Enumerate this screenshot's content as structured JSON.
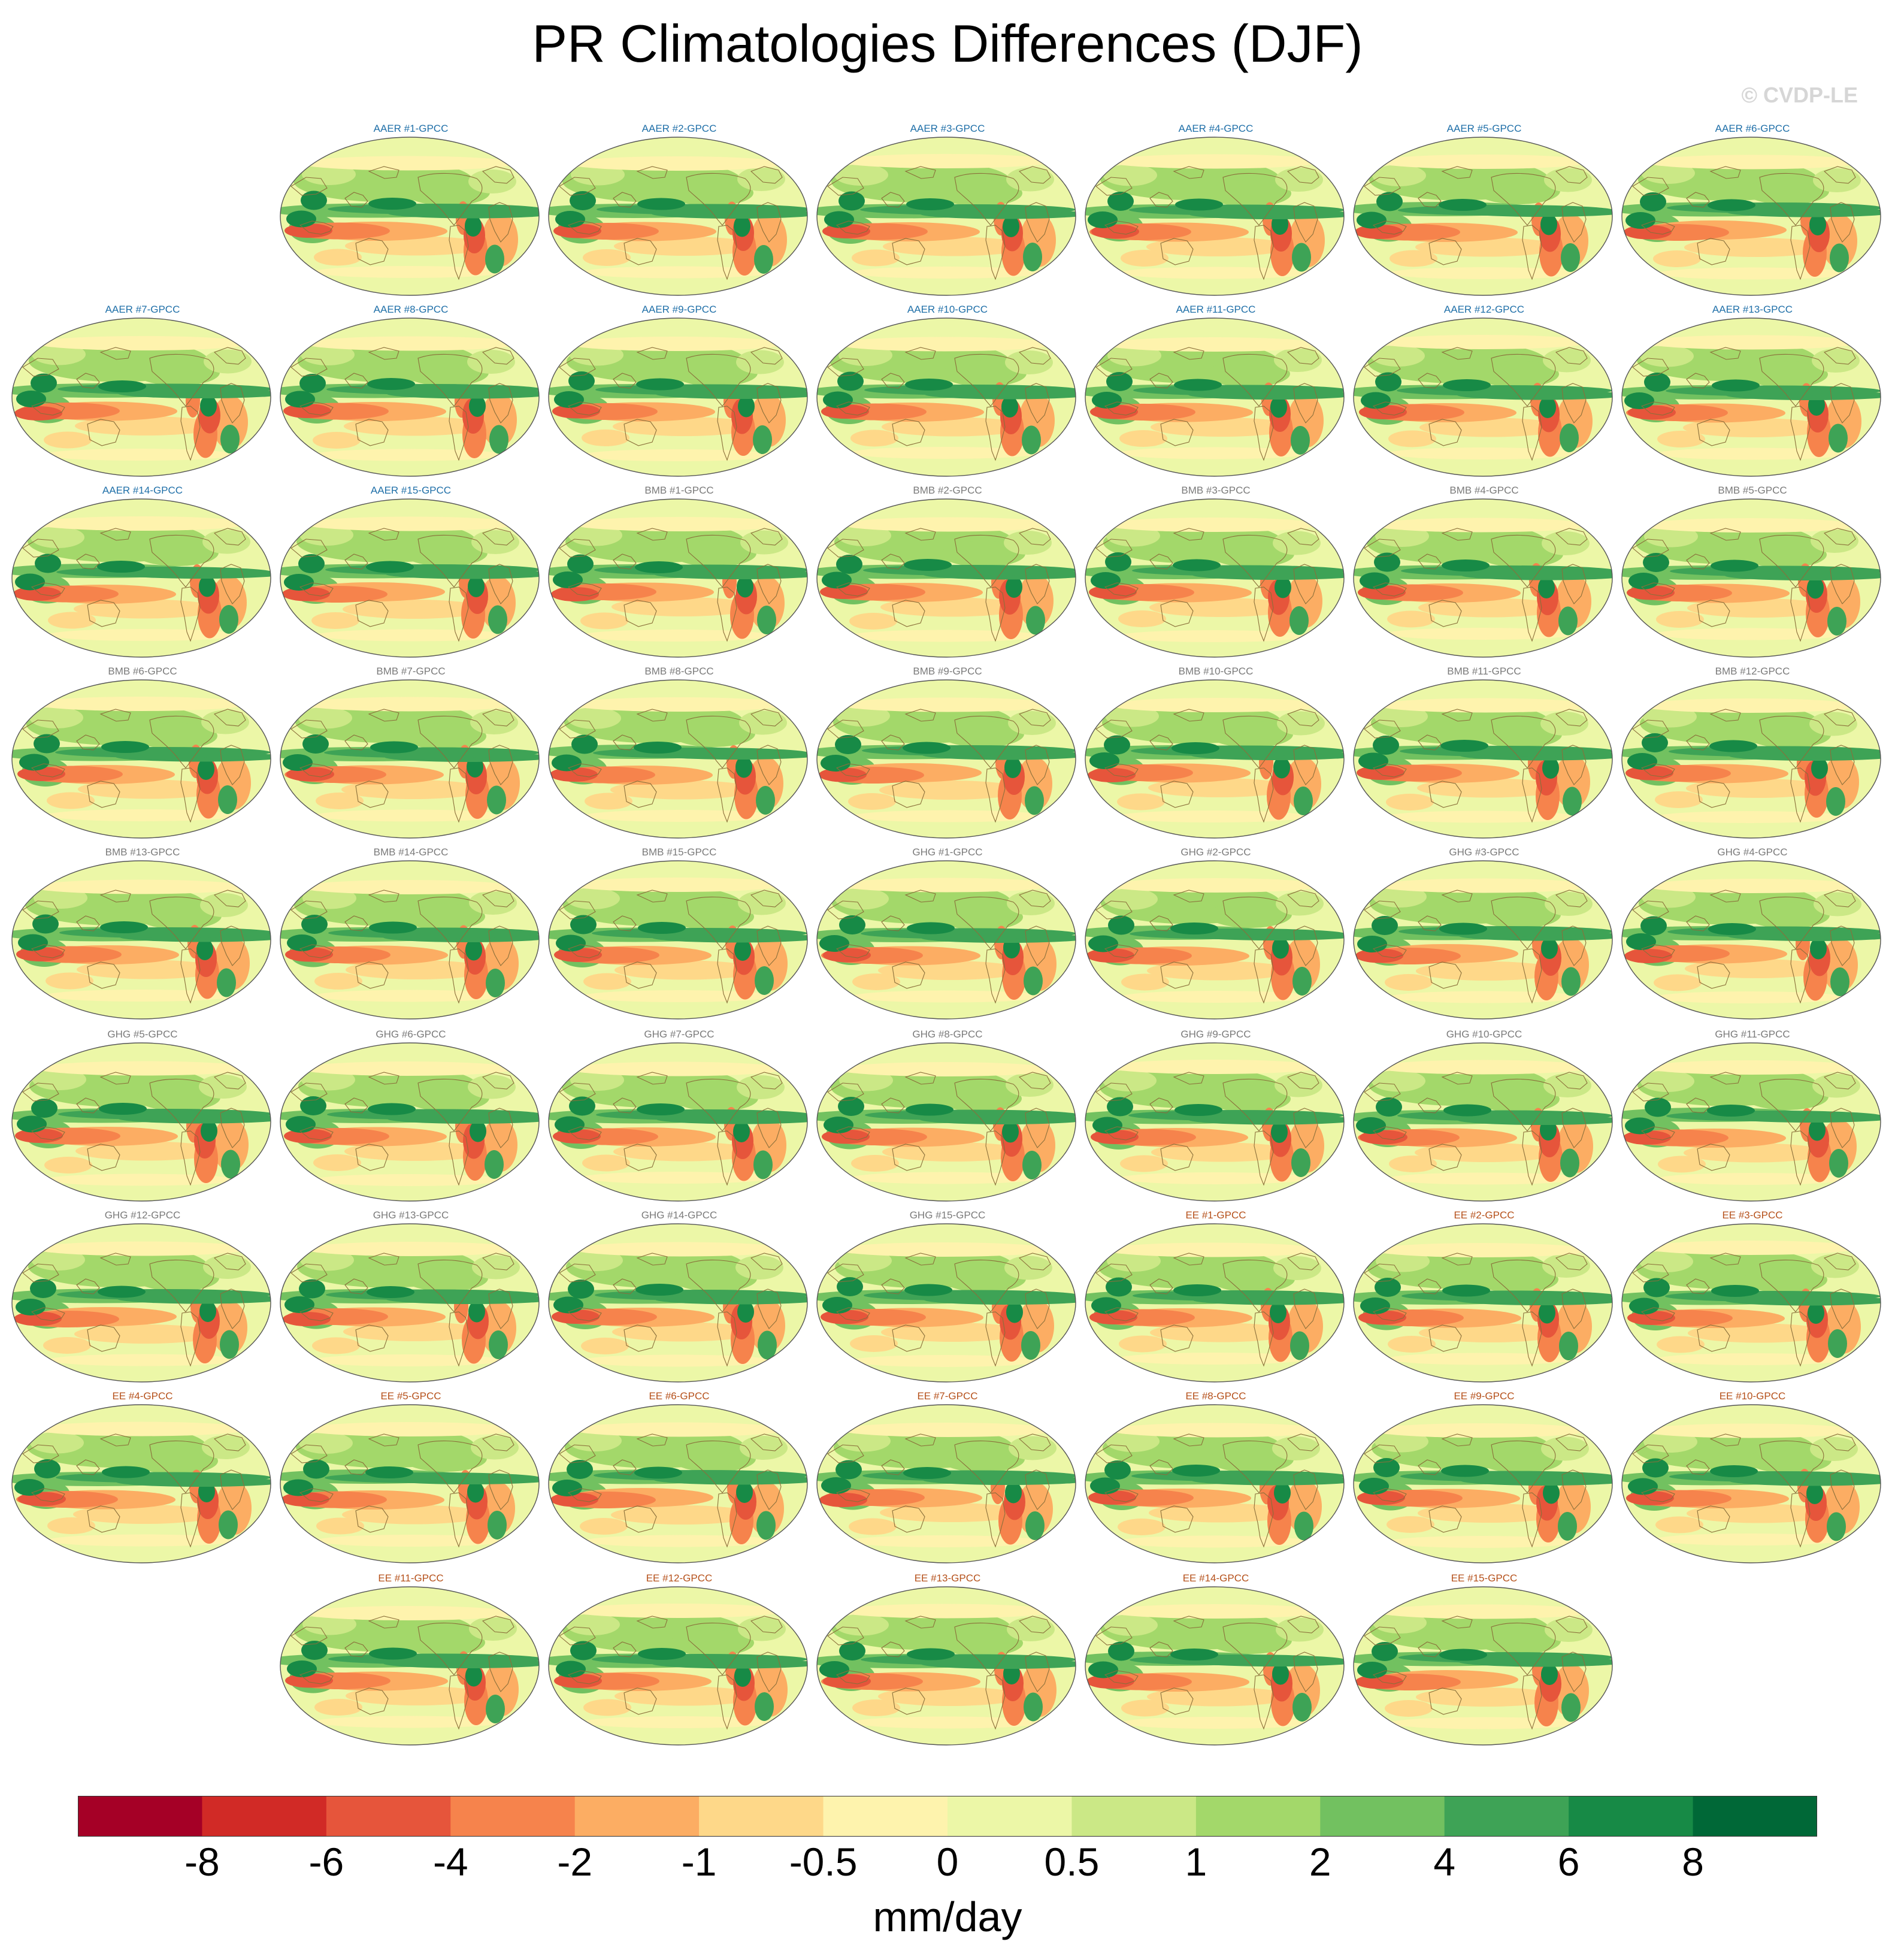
{
  "title": "PR Climatologies Differences (DJF)",
  "watermark": "© CVDP-LE",
  "colors": {
    "AAER": "#1f6fa8",
    "BMB": "#7a7a7a",
    "GHG": "#7a7a7a",
    "EE": "#b5501a"
  },
  "chart_data": {
    "type": "heatmap",
    "title": "PR Climatologies Differences (DJF)",
    "map_projection": "Robinson, Pacific-centered",
    "panels": [
      {
        "label": "AAER #1-GPCC",
        "group": "AAER"
      },
      {
        "label": "AAER #2-GPCC",
        "group": "AAER"
      },
      {
        "label": "AAER #3-GPCC",
        "group": "AAER"
      },
      {
        "label": "AAER #4-GPCC",
        "group": "AAER"
      },
      {
        "label": "AAER #5-GPCC",
        "group": "AAER"
      },
      {
        "label": "AAER #6-GPCC",
        "group": "AAER"
      },
      {
        "label": "AAER #7-GPCC",
        "group": "AAER"
      },
      {
        "label": "AAER #8-GPCC",
        "group": "AAER"
      },
      {
        "label": "AAER #9-GPCC",
        "group": "AAER"
      },
      {
        "label": "AAER #10-GPCC",
        "group": "AAER"
      },
      {
        "label": "AAER #11-GPCC",
        "group": "AAER"
      },
      {
        "label": "AAER #12-GPCC",
        "group": "AAER"
      },
      {
        "label": "AAER #13-GPCC",
        "group": "AAER"
      },
      {
        "label": "AAER #14-GPCC",
        "group": "AAER"
      },
      {
        "label": "AAER #15-GPCC",
        "group": "AAER"
      },
      {
        "label": "BMB #1-GPCC",
        "group": "BMB"
      },
      {
        "label": "BMB #2-GPCC",
        "group": "BMB"
      },
      {
        "label": "BMB #3-GPCC",
        "group": "BMB"
      },
      {
        "label": "BMB #4-GPCC",
        "group": "BMB"
      },
      {
        "label": "BMB #5-GPCC",
        "group": "BMB"
      },
      {
        "label": "BMB #6-GPCC",
        "group": "BMB"
      },
      {
        "label": "BMB #7-GPCC",
        "group": "BMB"
      },
      {
        "label": "BMB #8-GPCC",
        "group": "BMB"
      },
      {
        "label": "BMB #9-GPCC",
        "group": "BMB"
      },
      {
        "label": "BMB #10-GPCC",
        "group": "BMB"
      },
      {
        "label": "BMB #11-GPCC",
        "group": "BMB"
      },
      {
        "label": "BMB #12-GPCC",
        "group": "BMB"
      },
      {
        "label": "BMB #13-GPCC",
        "group": "BMB"
      },
      {
        "label": "BMB #14-GPCC",
        "group": "BMB"
      },
      {
        "label": "BMB #15-GPCC",
        "group": "BMB"
      },
      {
        "label": "GHG #1-GPCC",
        "group": "GHG"
      },
      {
        "label": "GHG #2-GPCC",
        "group": "GHG"
      },
      {
        "label": "GHG #3-GPCC",
        "group": "GHG"
      },
      {
        "label": "GHG #4-GPCC",
        "group": "GHG"
      },
      {
        "label": "GHG #5-GPCC",
        "group": "GHG"
      },
      {
        "label": "GHG #6-GPCC",
        "group": "GHG"
      },
      {
        "label": "GHG #7-GPCC",
        "group": "GHG"
      },
      {
        "label": "GHG #8-GPCC",
        "group": "GHG"
      },
      {
        "label": "GHG #9-GPCC",
        "group": "GHG"
      },
      {
        "label": "GHG #10-GPCC",
        "group": "GHG"
      },
      {
        "label": "GHG #11-GPCC",
        "group": "GHG"
      },
      {
        "label": "GHG #12-GPCC",
        "group": "GHG"
      },
      {
        "label": "GHG #13-GPCC",
        "group": "GHG"
      },
      {
        "label": "GHG #14-GPCC",
        "group": "GHG"
      },
      {
        "label": "GHG #15-GPCC",
        "group": "GHG"
      },
      {
        "label": "EE #1-GPCC",
        "group": "EE"
      },
      {
        "label": "EE #2-GPCC",
        "group": "EE"
      },
      {
        "label": "EE #3-GPCC",
        "group": "EE"
      },
      {
        "label": "EE #4-GPCC",
        "group": "EE"
      },
      {
        "label": "EE #5-GPCC",
        "group": "EE"
      },
      {
        "label": "EE #6-GPCC",
        "group": "EE"
      },
      {
        "label": "EE #7-GPCC",
        "group": "EE"
      },
      {
        "label": "EE #8-GPCC",
        "group": "EE"
      },
      {
        "label": "EE #9-GPCC",
        "group": "EE"
      },
      {
        "label": "EE #10-GPCC",
        "group": "EE"
      },
      {
        "label": "EE #11-GPCC",
        "group": "EE"
      },
      {
        "label": "EE #12-GPCC",
        "group": "EE"
      },
      {
        "label": "EE #13-GPCC",
        "group": "EE"
      },
      {
        "label": "EE #14-GPCC",
        "group": "EE"
      },
      {
        "label": "EE #15-GPCC",
        "group": "EE"
      }
    ],
    "colorbar": {
      "units": "mm/day",
      "ticks": [
        "-8",
        "-6",
        "-4",
        "-2",
        "-1",
        "-0.5",
        "0",
        "0.5",
        "1",
        "2",
        "4",
        "6",
        "8"
      ],
      "colors": [
        "#a50026",
        "#d12a26",
        "#e6553b",
        "#f6834c",
        "#fcad63",
        "#fed889",
        "#fef3ad",
        "#ecf7a7",
        "#cbe886",
        "#a3d86a",
        "#72c160",
        "#3ea356",
        "#178a46",
        "#006837"
      ]
    }
  }
}
